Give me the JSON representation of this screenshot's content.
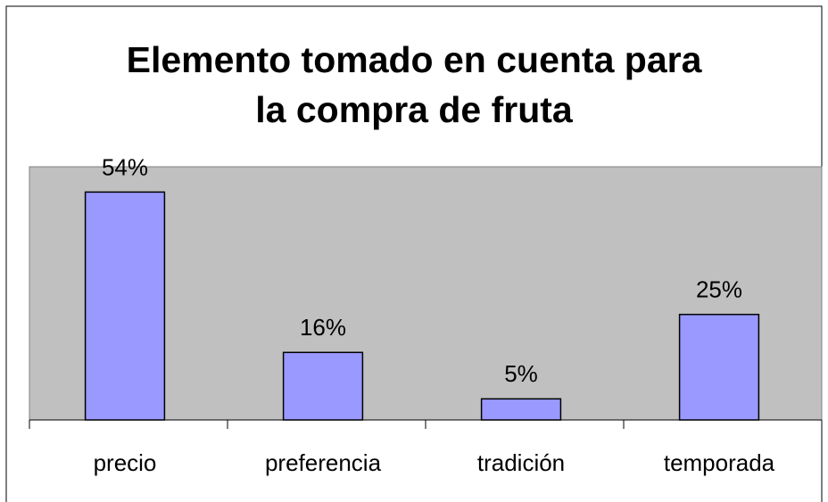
{
  "chart_data": {
    "type": "bar",
    "title": [
      "Elemento tomado en cuenta para",
      "la compra de fruta"
    ],
    "categories": [
      "precio",
      "preferencia",
      "tradición",
      "temporada"
    ],
    "values": [
      54,
      16,
      5,
      25
    ],
    "value_labels": [
      "54%",
      "16%",
      "5%",
      "25%"
    ],
    "color": "#9999ff",
    "ylim": [
      0,
      60
    ]
  }
}
